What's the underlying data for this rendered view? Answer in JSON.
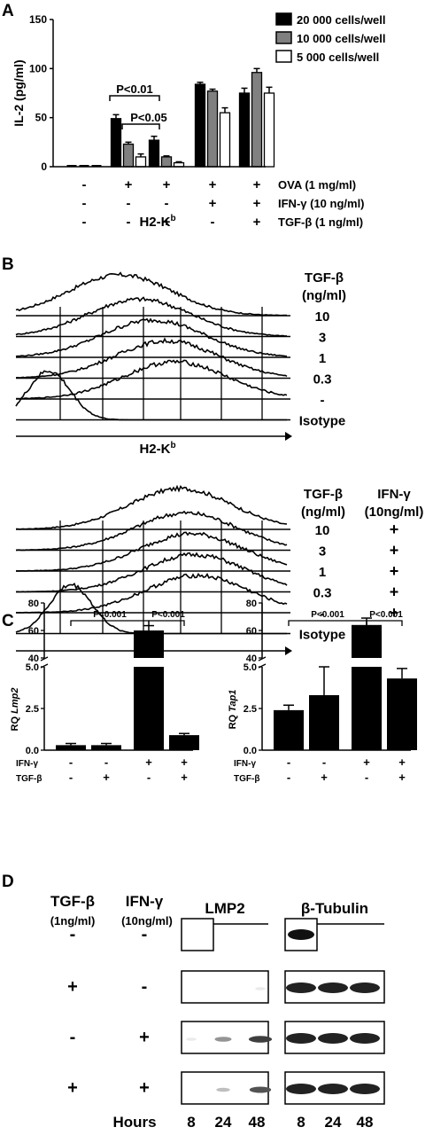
{
  "chart_data": [
    {
      "panel": "A",
      "type": "bar",
      "ylabel": "IL-2 (pg/ml)",
      "ylim": [
        0,
        150
      ],
      "yticks": [
        "0",
        "50",
        "100",
        "150"
      ],
      "legend_position": "top-right",
      "series": [
        {
          "name": "20 000 cells/well",
          "color": "#000000",
          "values": [
            0,
            49,
            27,
            84,
            75
          ]
        },
        {
          "name": "10 000 cells/well",
          "color": "#808080",
          "values": [
            0,
            23,
            10,
            77,
            96
          ]
        },
        {
          "name": "5 000 cells/well",
          "color": "#ffffff",
          "values": [
            0,
            10,
            4,
            55,
            75
          ]
        }
      ],
      "errors": [
        [
          0,
          4,
          4,
          2,
          5
        ],
        [
          0,
          2,
          1,
          2,
          4
        ],
        [
          0,
          3,
          1,
          5,
          6
        ]
      ],
      "conditions": [
        {
          "label": "OVA (1 mg/ml)",
          "values": [
            "-",
            "+",
            "+",
            "+",
            "+"
          ]
        },
        {
          "label": "IFN-γ (10 ng/ml)",
          "values": [
            "-",
            "-",
            "-",
            "+",
            "+"
          ]
        },
        {
          "label": "TGF-β (1 ng/ml)",
          "values": [
            "-",
            "-",
            "+",
            "-",
            "+"
          ]
        }
      ],
      "annotations": [
        "P<0.01",
        "P<0.05"
      ]
    },
    {
      "panel": "B",
      "type": "histogram",
      "xlabel": "H2-K",
      "xlabel_sup": "b",
      "header": [
        "TGF-β",
        "(ng/ml)"
      ],
      "rows": [
        "10",
        "3",
        "1",
        "0.3",
        "-",
        "Isotype"
      ],
      "peaks": [
        0.38,
        0.45,
        0.5,
        0.55,
        0.58,
        0.12
      ]
    },
    {
      "panel": "B2",
      "type": "histogram",
      "xlabel": "H2-K",
      "xlabel_sup": "b",
      "header1": [
        "TGF-β",
        "(ng/ml)"
      ],
      "header2": [
        "IFN-γ",
        "(10ng/ml)"
      ],
      "rows": [
        "10",
        "3",
        "1",
        "0.3",
        "-",
        "Isotype"
      ],
      "rows2": [
        "+",
        "+",
        "+",
        "+",
        "+",
        ""
      ],
      "peaks": [
        0.6,
        0.62,
        0.64,
        0.65,
        0.66,
        0.2
      ]
    },
    {
      "panel": "C",
      "type": "bar",
      "ylabel": "RQ ",
      "ylabel_gene": "Lmp2",
      "yticks_low": [
        "0.0",
        "2.5",
        "5.0"
      ],
      "yticks_high": [
        "40",
        "60",
        "80"
      ],
      "values": [
        0.3,
        0.3,
        60,
        0.9
      ],
      "errors": [
        0.1,
        0.1,
        3.5,
        0.1
      ],
      "conditions": [
        {
          "label": "IFN-γ",
          "values": [
            "-",
            "-",
            "+",
            "+"
          ]
        },
        {
          "label": "TGF-β",
          "values": [
            "-",
            "+",
            "-",
            "+"
          ]
        }
      ],
      "annotations": [
        "P<0.001",
        "P<0.001"
      ]
    },
    {
      "panel": "C2",
      "type": "bar",
      "ylabel": "RQ ",
      "ylabel_gene": "Tap1",
      "yticks_low": [
        "0.0",
        "2.5",
        "5.0"
      ],
      "yticks_high": [
        "40",
        "60",
        "80"
      ],
      "values": [
        2.4,
        3.3,
        64,
        4.3
      ],
      "errors": [
        0.3,
        1.7,
        5,
        0.6
      ],
      "conditions": [
        {
          "label": "IFN-γ",
          "values": [
            "-",
            "-",
            "+",
            "+"
          ]
        },
        {
          "label": "TGF-β",
          "values": [
            "-",
            "+",
            "-",
            "+"
          ]
        }
      ],
      "annotations": [
        "P<0.001",
        "P<0.001"
      ]
    },
    {
      "panel": "D",
      "type": "western-blot",
      "col1": [
        "TGF-β",
        "(1ng/ml)"
      ],
      "col2": [
        "IFN-γ",
        "(10ng/ml)"
      ],
      "blot1": "LMP2",
      "blot2": "β-Tubulin",
      "rows": [
        {
          "tgf": "-",
          "ifn": "-"
        },
        {
          "tgf": "+",
          "ifn": "-"
        },
        {
          "tgf": "-",
          "ifn": "+"
        },
        {
          "tgf": "+",
          "ifn": "+"
        }
      ],
      "lmp2_intensity": [
        [
          0,
          0,
          0
        ],
        [
          0,
          0,
          0.1
        ],
        [
          0.1,
          0.5,
          0.9
        ],
        [
          0,
          0.3,
          0.8
        ]
      ],
      "hours_label": "Hours",
      "hours": [
        "8",
        "24",
        "48"
      ]
    }
  ],
  "panel_labels": [
    "A",
    "B",
    "C",
    "D"
  ]
}
